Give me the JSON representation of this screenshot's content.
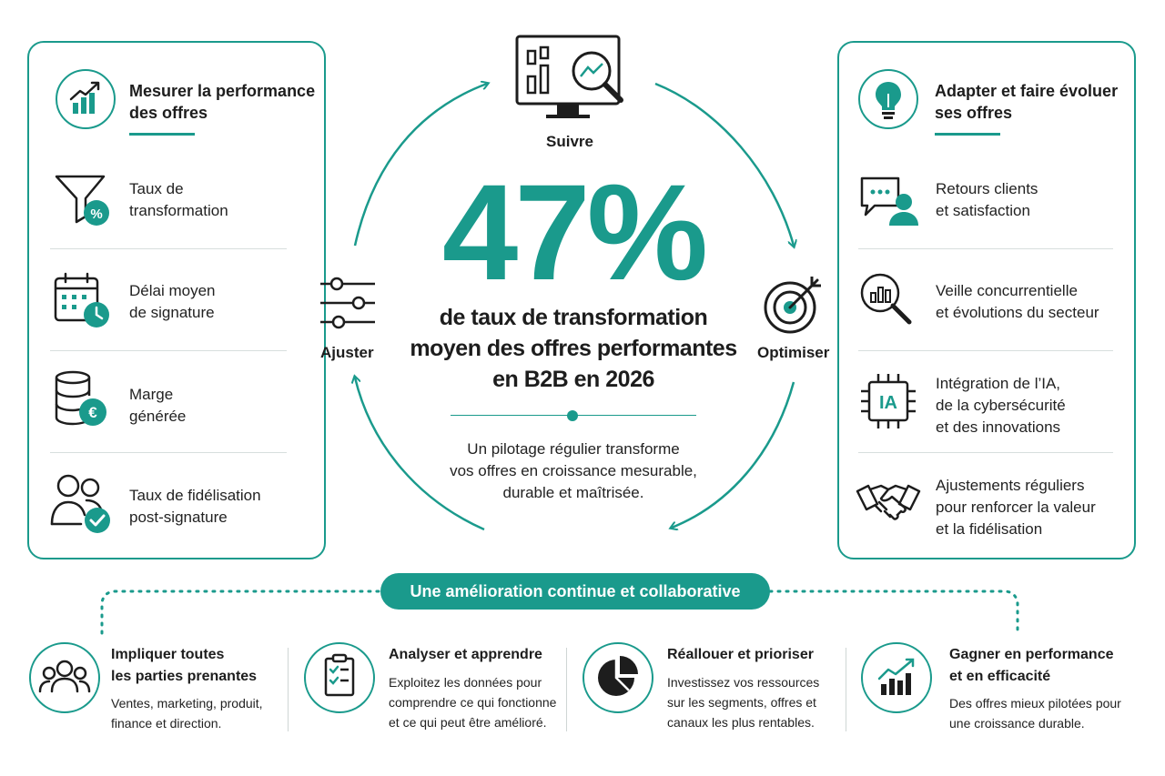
{
  "colors": {
    "accent": "#1a9a8c",
    "dark": "#1d1d1d"
  },
  "left_panel": {
    "title_line1": "Mesurer la performance",
    "title_line2": "des offres",
    "icon": "trending-chart-icon",
    "items": [
      {
        "line1": "Taux de",
        "line2": "transformation",
        "icon": "funnel-percent-icon"
      },
      {
        "line1": "Délai moyen",
        "line2": "de signature",
        "icon": "calendar-clock-icon"
      },
      {
        "line1": "Marge",
        "line2": "générée",
        "icon": "coins-euro-icon"
      },
      {
        "line1": "Taux de fidélisation",
        "line2": "post-signature",
        "icon": "users-check-icon"
      }
    ]
  },
  "right_panel": {
    "title_line1": "Adapter et faire évoluer",
    "title_line2": "ses offres",
    "icon": "lightbulb-icon",
    "items": [
      {
        "line1": "Retours clients",
        "line2": "et satisfaction",
        "icon": "chat-user-icon"
      },
      {
        "line1": "Veille concurrentielle",
        "line2": "et évolutions du secteur",
        "icon": "magnifier-chart-icon"
      },
      {
        "line1": "Intégration de l’IA,",
        "line2": "de la cybersécurité",
        "line3": "et des innovations",
        "icon": "ai-chip-icon"
      },
      {
        "line1": "Ajustements réguliers",
        "line2": "pour renforcer la valeur",
        "line3": "et la fidélisation",
        "icon": "handshake-icon"
      }
    ]
  },
  "cycle": {
    "suivre": "Suivre",
    "optimiser": "Optimiser",
    "ajuster": "Ajuster",
    "stat": "47%",
    "stat_line1": "de taux de transformation",
    "stat_line2": "moyen des offres performantes",
    "stat_line3": "en B2B en 2026",
    "desc_line1": "Un pilotage régulier transforme",
    "desc_line2": "vos offres en croissance mesurable,",
    "desc_line3": "durable et maîtrisée."
  },
  "banner": "Une amélioration continue et collaborative",
  "bottom": [
    {
      "title_line1": "Impliquer toutes",
      "title_line2": "les parties prenantes",
      "desc_line1": "Ventes, marketing, produit,",
      "desc_line2": "finance et direction.",
      "icon": "team-icon"
    },
    {
      "title_line1": "Analyser et apprendre",
      "desc_line1": "Exploitez les données pour",
      "desc_line2": "comprendre ce qui fonctionne",
      "desc_line3": "et ce qui peut être amélioré.",
      "icon": "clipboard-check-icon"
    },
    {
      "title_line1": "Réallouer et prioriser",
      "desc_line1": "Investissez vos ressources",
      "desc_line2": "sur les segments, offres et",
      "desc_line3": "canaux les plus rentables.",
      "icon": "pie-chart-icon"
    },
    {
      "title_line1": "Gagner en performance",
      "title_line2": "et en efficacité",
      "desc_line1": "Des offres mieux pilotées pour",
      "desc_line2": "une croissance durable.",
      "icon": "growth-chart-icon"
    }
  ]
}
